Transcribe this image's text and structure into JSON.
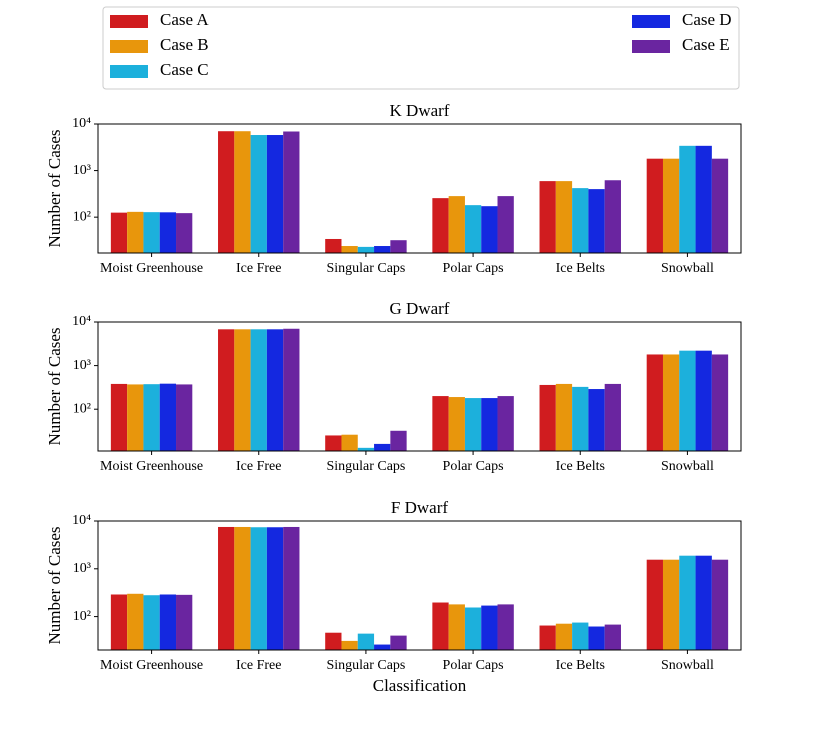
{
  "chart_data": [
    {
      "type": "bar",
      "title": "K Dwarf",
      "ylabel": "Number of Cases",
      "log_y": true,
      "categories": [
        "Moist Greenhouse",
        "Ice Free",
        "Singular Caps",
        "Polar Caps",
        "Ice Belts",
        "Snowball"
      ],
      "ylim": [
        17,
        10000
      ],
      "yticks": [
        {
          "value": 100,
          "label": "10²"
        },
        {
          "value": 1000,
          "label": "10³"
        },
        {
          "value": 10000,
          "label": "10⁴"
        }
      ],
      "legend": "top",
      "series": [
        {
          "name": "Case A",
          "color": "#d01c1f",
          "values": [
            125,
            7000,
            34,
            256,
            594,
            1800
          ]
        },
        {
          "name": "Case B",
          "color": "#e8960c",
          "values": [
            130,
            7000,
            24,
            283,
            594,
            1800
          ]
        },
        {
          "name": "Case C",
          "color": "#1cb0dc",
          "values": [
            128,
            5800,
            23,
            181,
            420,
            3400
          ]
        },
        {
          "name": "Case D",
          "color": "#1428e0",
          "values": [
            127,
            5800,
            24,
            172,
            400,
            3400
          ]
        },
        {
          "name": "Case E",
          "color": "#6a25a0",
          "values": [
            122,
            6900,
            32,
            283,
            620,
            1800
          ]
        }
      ]
    },
    {
      "type": "bar",
      "title": "G Dwarf",
      "ylabel": "Number of Cases",
      "log_y": true,
      "categories": [
        "Moist Greenhouse",
        "Ice Free",
        "Singular Caps",
        "Polar Caps",
        "Ice Belts",
        "Snowball"
      ],
      "ylim": [
        11,
        10000
      ],
      "yticks": [
        {
          "value": 100,
          "label": "10²"
        },
        {
          "value": 1000,
          "label": "10³"
        },
        {
          "value": 10000,
          "label": "10⁴"
        }
      ],
      "series": [
        {
          "color": "#d01c1f",
          "values": [
            380,
            6800,
            25,
            200,
            360,
            1800
          ]
        },
        {
          "color": "#e8960c",
          "values": [
            370,
            6800,
            26,
            190,
            380,
            1800
          ]
        },
        {
          "color": "#1cb0dc",
          "values": [
            375,
            6800,
            13,
            180,
            325,
            2200
          ]
        },
        {
          "color": "#1428e0",
          "values": [
            385,
            6800,
            16,
            180,
            290,
            2200
          ]
        },
        {
          "color": "#6a25a0",
          "values": [
            370,
            7000,
            32,
            200,
            380,
            1800
          ]
        }
      ]
    },
    {
      "type": "bar",
      "title": "F Dwarf",
      "ylabel": "Number of Cases",
      "xlabel": "Classification",
      "log_y": true,
      "categories": [
        "Moist Greenhouse",
        "Ice Free",
        "Singular Caps",
        "Polar Caps",
        "Ice Belts",
        "Snowball"
      ],
      "ylim": [
        20,
        10000
      ],
      "yticks": [
        {
          "value": 100,
          "label": "10²"
        },
        {
          "value": 1000,
          "label": "10³"
        },
        {
          "value": 10000,
          "label": "10⁴"
        }
      ],
      "series": [
        {
          "color": "#d01c1f",
          "values": [
            290,
            7500,
            46,
            197,
            65,
            1550
          ]
        },
        {
          "color": "#e8960c",
          "values": [
            300,
            7500,
            31,
            180,
            71,
            1550
          ]
        },
        {
          "color": "#1cb0dc",
          "values": [
            280,
            7400,
            44,
            155,
            75,
            1880
          ]
        },
        {
          "color": "#1428e0",
          "values": [
            290,
            7400,
            26,
            170,
            62,
            1880
          ]
        },
        {
          "color": "#6a25a0",
          "values": [
            285,
            7500,
            40,
            180,
            68,
            1550
          ]
        }
      ]
    }
  ]
}
